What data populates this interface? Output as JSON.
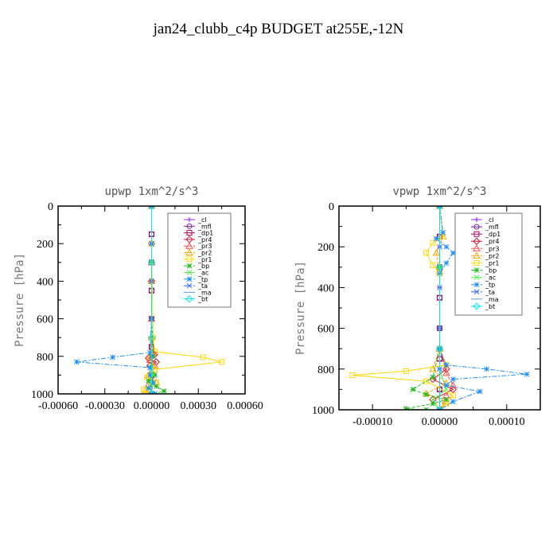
{
  "figure_title": "jan24_clubb_c4p  BUDGET at255E,-12N",
  "chart_data": [
    {
      "type": "line",
      "title": "upwp   1xm^2/s^3",
      "xlabel": "",
      "ylabel": "Pressure [hPa]",
      "xlim": [
        -0.0006,
        0.0006
      ],
      "ylim": [
        1000,
        0
      ],
      "xticks": [
        -0.0006,
        -0.0003,
        0,
        0.0003,
        0.0006
      ],
      "xtick_labels": [
        "-0.00060",
        "-0.00030",
        "0.00000",
        "0.00030",
        "0.00060"
      ],
      "yticks": [
        0,
        200,
        400,
        600,
        800,
        1000
      ],
      "ytick_labels": [
        "0",
        "200",
        "400",
        "600",
        "800",
        "1000"
      ],
      "legend_position": "top-right",
      "series": [
        {
          "name": "_cl",
          "color": "#9b30ff",
          "marker": "plus",
          "dash": "",
          "x": [
            0,
            0,
            0,
            0,
            0,
            0,
            0
          ],
          "y": [
            0,
            200,
            400,
            600,
            800,
            900,
            1000
          ]
        },
        {
          "name": "_mfl",
          "color": "#7a1fa2",
          "marker": "circle",
          "dash": "",
          "x": [
            0,
            0,
            0,
            0,
            0,
            0,
            0,
            0
          ],
          "y": [
            0,
            150,
            300,
            450,
            600,
            750,
            900,
            1000
          ]
        },
        {
          "name": "_dp1",
          "color": "#b0005a",
          "marker": "square",
          "dash": "",
          "x": [
            0,
            0,
            0,
            0,
            0,
            0,
            0,
            0
          ],
          "y": [
            0,
            150,
            300,
            450,
            600,
            750,
            900,
            1000
          ]
        },
        {
          "name": "_pr4",
          "color": "#cc1a33",
          "marker": "diamond",
          "dash": "",
          "x": [
            0,
            0,
            0,
            0,
            2e-05,
            -2e-05,
            3e-05,
            -1e-05,
            1e-05,
            0
          ],
          "y": [
            0,
            200,
            400,
            700,
            790,
            810,
            830,
            850,
            900,
            1000
          ]
        },
        {
          "name": "_pr3",
          "color": "#ff4c4c",
          "marker": "triangle",
          "dash": "4 2",
          "x": [
            0,
            0,
            0,
            1e-05,
            -1e-05,
            2e-05,
            0,
            -2e-05,
            0
          ],
          "y": [
            0,
            300,
            600,
            780,
            820,
            850,
            900,
            950,
            1000
          ]
        },
        {
          "name": "_pr2",
          "color": "#ffa500",
          "marker": "triangle",
          "dash": "4 2",
          "x": [
            0,
            0,
            0,
            -1e-05,
            1e-05,
            -2e-05,
            3e-05,
            -4e-05,
            0
          ],
          "y": [
            0,
            400,
            700,
            800,
            850,
            900,
            940,
            980,
            1000
          ]
        },
        {
          "name": "_pr1",
          "color": "#ffd700",
          "marker": "square",
          "dash": "",
          "x": [
            0,
            0,
            1e-05,
            2e-05,
            0.00033,
            0.00045,
            2e-05,
            -3e-05,
            3e-05,
            -5e-05,
            -2e-05
          ],
          "y": [
            0,
            200,
            700,
            775,
            805,
            830,
            870,
            910,
            940,
            975,
            1000
          ]
        },
        {
          "name": "_bp",
          "color": "#22bb22",
          "marker": "star",
          "dash": "4 2",
          "x": [
            0,
            0,
            0,
            1e-05,
            -1e-05,
            2e-05,
            -2e-05,
            3e-05,
            8e-05,
            2e-05
          ],
          "y": [
            0,
            300,
            600,
            800,
            860,
            900,
            930,
            960,
            985,
            1000
          ]
        },
        {
          "name": "_ac",
          "color": "#55ee55",
          "marker": "cross",
          "dash": "",
          "x": [
            0,
            0,
            0,
            0,
            1e-05,
            -1e-05,
            0
          ],
          "y": [
            0,
            300,
            600,
            800,
            900,
            950,
            1000
          ]
        },
        {
          "name": "_tp",
          "color": "#1e90ff",
          "marker": "star",
          "dash": "6 2 2 2",
          "x": [
            0,
            0,
            0,
            -1e-05,
            -0.00025,
            -0.00048,
            -1e-05,
            -1e-05,
            1e-05,
            -2e-05,
            2e-05
          ],
          "y": [
            0,
            200,
            600,
            780,
            805,
            830,
            860,
            900,
            940,
            970,
            1000
          ]
        },
        {
          "name": "_ta",
          "color": "#3366ff",
          "marker": "cross",
          "dash": "6 2 2 2",
          "x": [
            0,
            0,
            0,
            0,
            0,
            0
          ],
          "y": [
            0,
            200,
            400,
            600,
            800,
            1000
          ]
        },
        {
          "name": "_ma",
          "color": "#6495ed",
          "marker": "none",
          "dash": "",
          "x": [
            0,
            0,
            0,
            0
          ],
          "y": [
            0,
            300,
            700,
            1000
          ]
        },
        {
          "name": "_bt",
          "color": "#00e5ee",
          "marker": "diamond",
          "dash": "",
          "x": [
            0,
            0,
            0,
            0
          ],
          "y": [
            0,
            300,
            700,
            1000
          ]
        }
      ]
    },
    {
      "type": "line",
      "title": "vpwp   1xm^2/s^3",
      "xlabel": "",
      "ylabel": "Pressure [hPa]",
      "xlim": [
        -0.00015,
        0.00015
      ],
      "ylim": [
        1000,
        0
      ],
      "xticks": [
        -0.0001,
        0,
        0.0001
      ],
      "xtick_labels": [
        "-0.00010",
        "0.00000",
        "0.00010"
      ],
      "yticks": [
        0,
        200,
        400,
        600,
        800,
        1000
      ],
      "ytick_labels": [
        "0",
        "200",
        "400",
        "600",
        "800",
        "1000"
      ],
      "legend_position": "top-right",
      "series": [
        {
          "name": "_cl",
          "color": "#9b30ff",
          "marker": "plus",
          "dash": "",
          "x": [
            0,
            0,
            0,
            0,
            0,
            0
          ],
          "y": [
            0,
            200,
            400,
            600,
            800,
            1000
          ]
        },
        {
          "name": "_mfl",
          "color": "#7a1fa2",
          "marker": "circle",
          "dash": "",
          "x": [
            0,
            0,
            0,
            0,
            0,
            0,
            0,
            0
          ],
          "y": [
            0,
            150,
            300,
            450,
            600,
            750,
            900,
            1000
          ]
        },
        {
          "name": "_dp1",
          "color": "#b0005a",
          "marker": "square",
          "dash": "",
          "x": [
            0,
            0,
            0,
            0,
            0,
            0,
            0,
            0
          ],
          "y": [
            0,
            150,
            300,
            450,
            600,
            750,
            900,
            1000
          ]
        },
        {
          "name": "_pr4",
          "color": "#cc1a33",
          "marker": "diamond",
          "dash": "",
          "x": [
            0,
            0,
            0,
            1e-05,
            -1e-05,
            2e-05,
            -1e-05,
            0
          ],
          "y": [
            0,
            300,
            700,
            800,
            850,
            900,
            950,
            1000
          ]
        },
        {
          "name": "_pr3",
          "color": "#ff4c4c",
          "marker": "triangle",
          "dash": "4 2",
          "x": [
            0,
            0,
            0,
            1e-05,
            2e-05,
            1e-05,
            0
          ],
          "y": [
            0,
            300,
            700,
            820,
            880,
            930,
            1000
          ]
        },
        {
          "name": "_pr2",
          "color": "#ffa500",
          "marker": "triangle",
          "dash": "4 2",
          "x": [
            0,
            5e-06,
            -5e-06,
            0,
            0,
            -1e-05,
            1e-05,
            -2e-05,
            1e-05,
            0
          ],
          "y": [
            0,
            150,
            230,
            320,
            700,
            800,
            870,
            920,
            960,
            1000
          ]
        },
        {
          "name": "_pr1",
          "color": "#ffd700",
          "marker": "square",
          "dash": "",
          "x": [
            0,
            5e-06,
            -1e-05,
            -2e-05,
            -1e-05,
            0,
            0,
            1e-05,
            -5e-05,
            -0.00013,
            -2e-05,
            2e-05,
            1e-05,
            0
          ],
          "y": [
            0,
            150,
            180,
            230,
            290,
            330,
            700,
            780,
            810,
            830,
            860,
            930,
            970,
            1000
          ]
        },
        {
          "name": "_bp",
          "color": "#22bb22",
          "marker": "star",
          "dash": "4 2",
          "x": [
            0,
            0,
            0,
            -1e-05,
            -4e-05,
            -2e-05,
            1e-05,
            -1e-05,
            -5e-05,
            -2e-05
          ],
          "y": [
            0,
            300,
            700,
            840,
            900,
            925,
            950,
            970,
            995,
            1000
          ]
        },
        {
          "name": "_ac",
          "color": "#55ee55",
          "marker": "cross",
          "dash": "",
          "x": [
            0,
            0,
            0,
            0,
            1e-05,
            -1e-05,
            0
          ],
          "y": [
            0,
            300,
            600,
            800,
            900,
            950,
            1000
          ]
        },
        {
          "name": "_tp",
          "color": "#1e90ff",
          "marker": "star",
          "dash": "6 2 2 2",
          "x": [
            0,
            5e-06,
            -5e-06,
            1e-05,
            2e-05,
            1e-05,
            0,
            0,
            1e-05,
            7e-05,
            0.00013,
            2e-05,
            1e-05,
            6e-05,
            2e-05,
            0
          ],
          "y": [
            0,
            130,
            160,
            200,
            230,
            280,
            330,
            700,
            780,
            800,
            825,
            850,
            880,
            910,
            960,
            1000
          ]
        },
        {
          "name": "_ta",
          "color": "#3366ff",
          "marker": "cross",
          "dash": "6 2 2 2",
          "x": [
            0,
            0,
            0,
            0,
            0,
            0
          ],
          "y": [
            0,
            200,
            400,
            600,
            800,
            1000
          ]
        },
        {
          "name": "_ma",
          "color": "#6495ed",
          "marker": "none",
          "dash": "",
          "x": [
            0,
            0,
            0,
            0
          ],
          "y": [
            0,
            300,
            700,
            1000
          ]
        },
        {
          "name": "_bt",
          "color": "#00e5ee",
          "marker": "diamond",
          "dash": "",
          "x": [
            0,
            0,
            0,
            0
          ],
          "y": [
            0,
            300,
            700,
            1000
          ]
        }
      ]
    }
  ]
}
